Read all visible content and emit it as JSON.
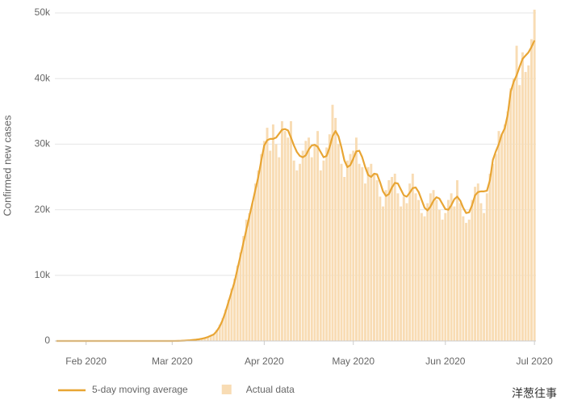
{
  "chart_data": {
    "type": "combo",
    "y_label": "Confirmed new cases",
    "categories": [
      null,
      null,
      null,
      null,
      null,
      null,
      null,
      null,
      null,
      null,
      "Feb 2020",
      null,
      null,
      null,
      null,
      null,
      null,
      null,
      null,
      null,
      null,
      null,
      null,
      null,
      null,
      null,
      null,
      null,
      null,
      null,
      null,
      null,
      null,
      null,
      null,
      null,
      null,
      null,
      null,
      "Mar 2020",
      null,
      null,
      null,
      null,
      null,
      null,
      null,
      null,
      null,
      null,
      null,
      null,
      null,
      null,
      null,
      null,
      null,
      null,
      null,
      null,
      null,
      null,
      null,
      null,
      null,
      null,
      null,
      null,
      null,
      null,
      "Apr 2020",
      null,
      null,
      null,
      null,
      null,
      null,
      null,
      null,
      null,
      null,
      null,
      null,
      null,
      null,
      null,
      null,
      null,
      null,
      null,
      null,
      null,
      null,
      null,
      null,
      null,
      null,
      null,
      null,
      null,
      "May 2020",
      null,
      null,
      null,
      null,
      null,
      null,
      null,
      null,
      null,
      null,
      null,
      null,
      null,
      null,
      null,
      null,
      null,
      null,
      null,
      null,
      null,
      null,
      null,
      null,
      null,
      null,
      null,
      null,
      null,
      null,
      "Jun 2020",
      null,
      null,
      null,
      null,
      null,
      null,
      null,
      null,
      null,
      null,
      null,
      null,
      null,
      null,
      null,
      null,
      null,
      null,
      null,
      null,
      null,
      null,
      null,
      null,
      null,
      null,
      null,
      null,
      null,
      "Jul 2020"
    ],
    "series": [
      {
        "name": "5-day moving average",
        "type": "line",
        "color": "#e8a534",
        "values": [
          0,
          0,
          0,
          0,
          0,
          0,
          0,
          0,
          0,
          0,
          0,
          0,
          0,
          0,
          0,
          0,
          0,
          0,
          0,
          0,
          0,
          0,
          0,
          0,
          0,
          0,
          0,
          0,
          0,
          0,
          0,
          0,
          0,
          0,
          0,
          0,
          0,
          0,
          0,
          0,
          10,
          20,
          30,
          50,
          80,
          110,
          150,
          200,
          260,
          350,
          450,
          600,
          800,
          1000,
          1500,
          2200,
          3200,
          4500,
          6000,
          7500,
          9000,
          11000,
          13000,
          15000,
          17000,
          19000,
          21000,
          23000,
          25000,
          27500,
          29800,
          30600,
          30800,
          30800,
          31000,
          31600,
          32200,
          32300,
          32100,
          31000,
          29800,
          28800,
          28200,
          28000,
          28300,
          29200,
          29800,
          29900,
          29600,
          28800,
          28000,
          28200,
          29500,
          31200,
          32000,
          31200,
          29500,
          27500,
          26500,
          26800,
          27800,
          28900,
          29000,
          28000,
          26500,
          25300,
          25000,
          25500,
          25400,
          24200,
          22800,
          22100,
          22400,
          23400,
          24100,
          24000,
          23100,
          22200,
          22000,
          22600,
          23300,
          23400,
          22700,
          21500,
          20300,
          19900,
          20500,
          21400,
          21900,
          21700,
          20900,
          20100,
          20000,
          20700,
          21600,
          22000,
          21400,
          20300,
          19500,
          19600,
          20700,
          22200,
          22700,
          22800,
          22800,
          22900,
          24500,
          27600,
          28900,
          30000,
          31500,
          32400,
          34500,
          38000,
          39500,
          40500,
          41800,
          43000,
          43500,
          44000,
          44800,
          45800
        ]
      },
      {
        "name": "Actual data",
        "type": "bar",
        "color": "#f8dcb4",
        "values": [
          0,
          0,
          0,
          0,
          0,
          0,
          0,
          0,
          0,
          0,
          0,
          0,
          0,
          0,
          0,
          0,
          0,
          0,
          0,
          0,
          0,
          0,
          0,
          0,
          0,
          0,
          0,
          0,
          0,
          0,
          0,
          0,
          0,
          0,
          0,
          0,
          0,
          0,
          0,
          0,
          10,
          15,
          40,
          60,
          90,
          120,
          160,
          200,
          300,
          380,
          500,
          620,
          800,
          1000,
          1700,
          2500,
          3500,
          4800,
          6300,
          8000,
          9500,
          11500,
          13500,
          16000,
          18500,
          19500,
          21000,
          24000,
          26000,
          28500,
          30500,
          32500,
          29000,
          33000,
          30000,
          28000,
          33500,
          32000,
          31000,
          33500,
          27500,
          26000,
          27000,
          29000,
          30500,
          31000,
          28000,
          30000,
          32000,
          26000,
          27500,
          29500,
          31500,
          36000,
          34000,
          30000,
          27000,
          25000,
          27500,
          28500,
          29000,
          31000,
          27000,
          26500,
          24000,
          26500,
          27000,
          25500,
          24500,
          22000,
          20500,
          23000,
          24500,
          25000,
          25500,
          22500,
          20500,
          22000,
          21000,
          24000,
          25500,
          22500,
          21500,
          19500,
          19000,
          21000,
          22500,
          23000,
          21500,
          20000,
          18500,
          19500,
          21500,
          22500,
          20500,
          24500,
          21000,
          19000,
          18000,
          18500,
          21500,
          23500,
          24000,
          21000,
          19500,
          22500,
          25500,
          27000,
          28500,
          32000,
          31500,
          33000,
          35000,
          38500,
          40000,
          45000,
          39000,
          44000,
          41000,
          42000,
          46000,
          50500
        ]
      }
    ],
    "ylim": [
      0,
      50000
    ],
    "yticks": [
      0,
      {
        "value": 10000,
        "label": "10k"
      },
      {
        "value": 20000,
        "label": "20k"
      },
      {
        "value": 30000,
        "label": "30k"
      },
      {
        "value": 40000,
        "label": "40k"
      },
      {
        "value": 50000,
        "label": "50k"
      }
    ],
    "grid": true
  },
  "watermark": "洋葱往事"
}
